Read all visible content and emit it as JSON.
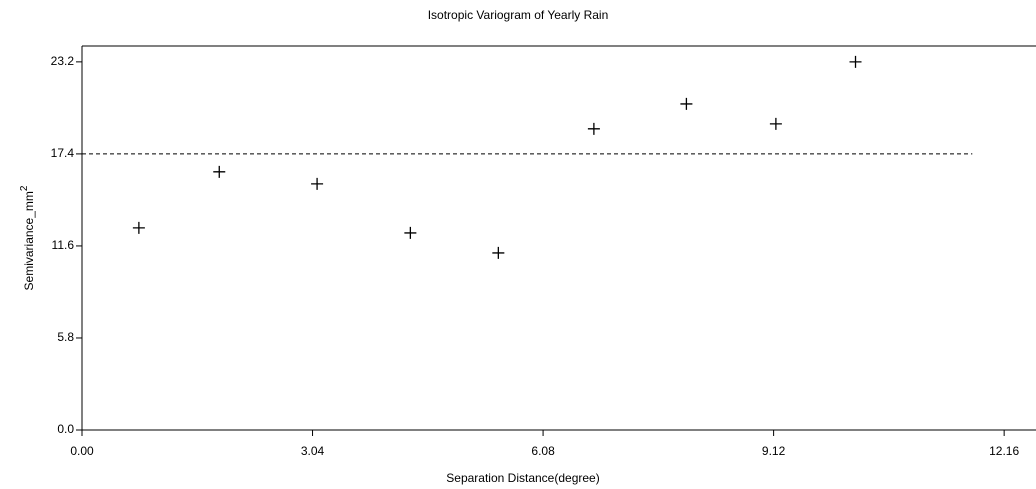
{
  "chart_data": {
    "type": "scatter",
    "title": "Isotropic Variogram of Yearly Rain",
    "x_label": "Separation Distance(degree)",
    "y_label": "Semivariance_mm",
    "y_label_superscript": "2",
    "series": [
      {
        "color": "#000000",
        "x": [
          0.75,
          1.81,
          3.1,
          4.33,
          5.49,
          6.75,
          7.97,
          9.15,
          10.2
        ],
        "values": [
          12.74,
          16.27,
          15.51,
          12.42,
          11.16,
          18.98,
          20.55,
          19.29,
          23.2
        ]
      }
    ],
    "reference_line": {
      "y": 17.4,
      "x_end": 11.74
    },
    "xlim": [
      0,
      12.58
    ],
    "ylim": [
      0,
      24.2
    ],
    "xticks": [
      {
        "value": 0,
        "label": "0.00"
      },
      3.04,
      6.08,
      9.12,
      12.16
    ],
    "yticks": [
      {
        "value": 0,
        "label": "0.0"
      },
      5.8,
      11.6,
      17.4,
      23.2
    ]
  }
}
